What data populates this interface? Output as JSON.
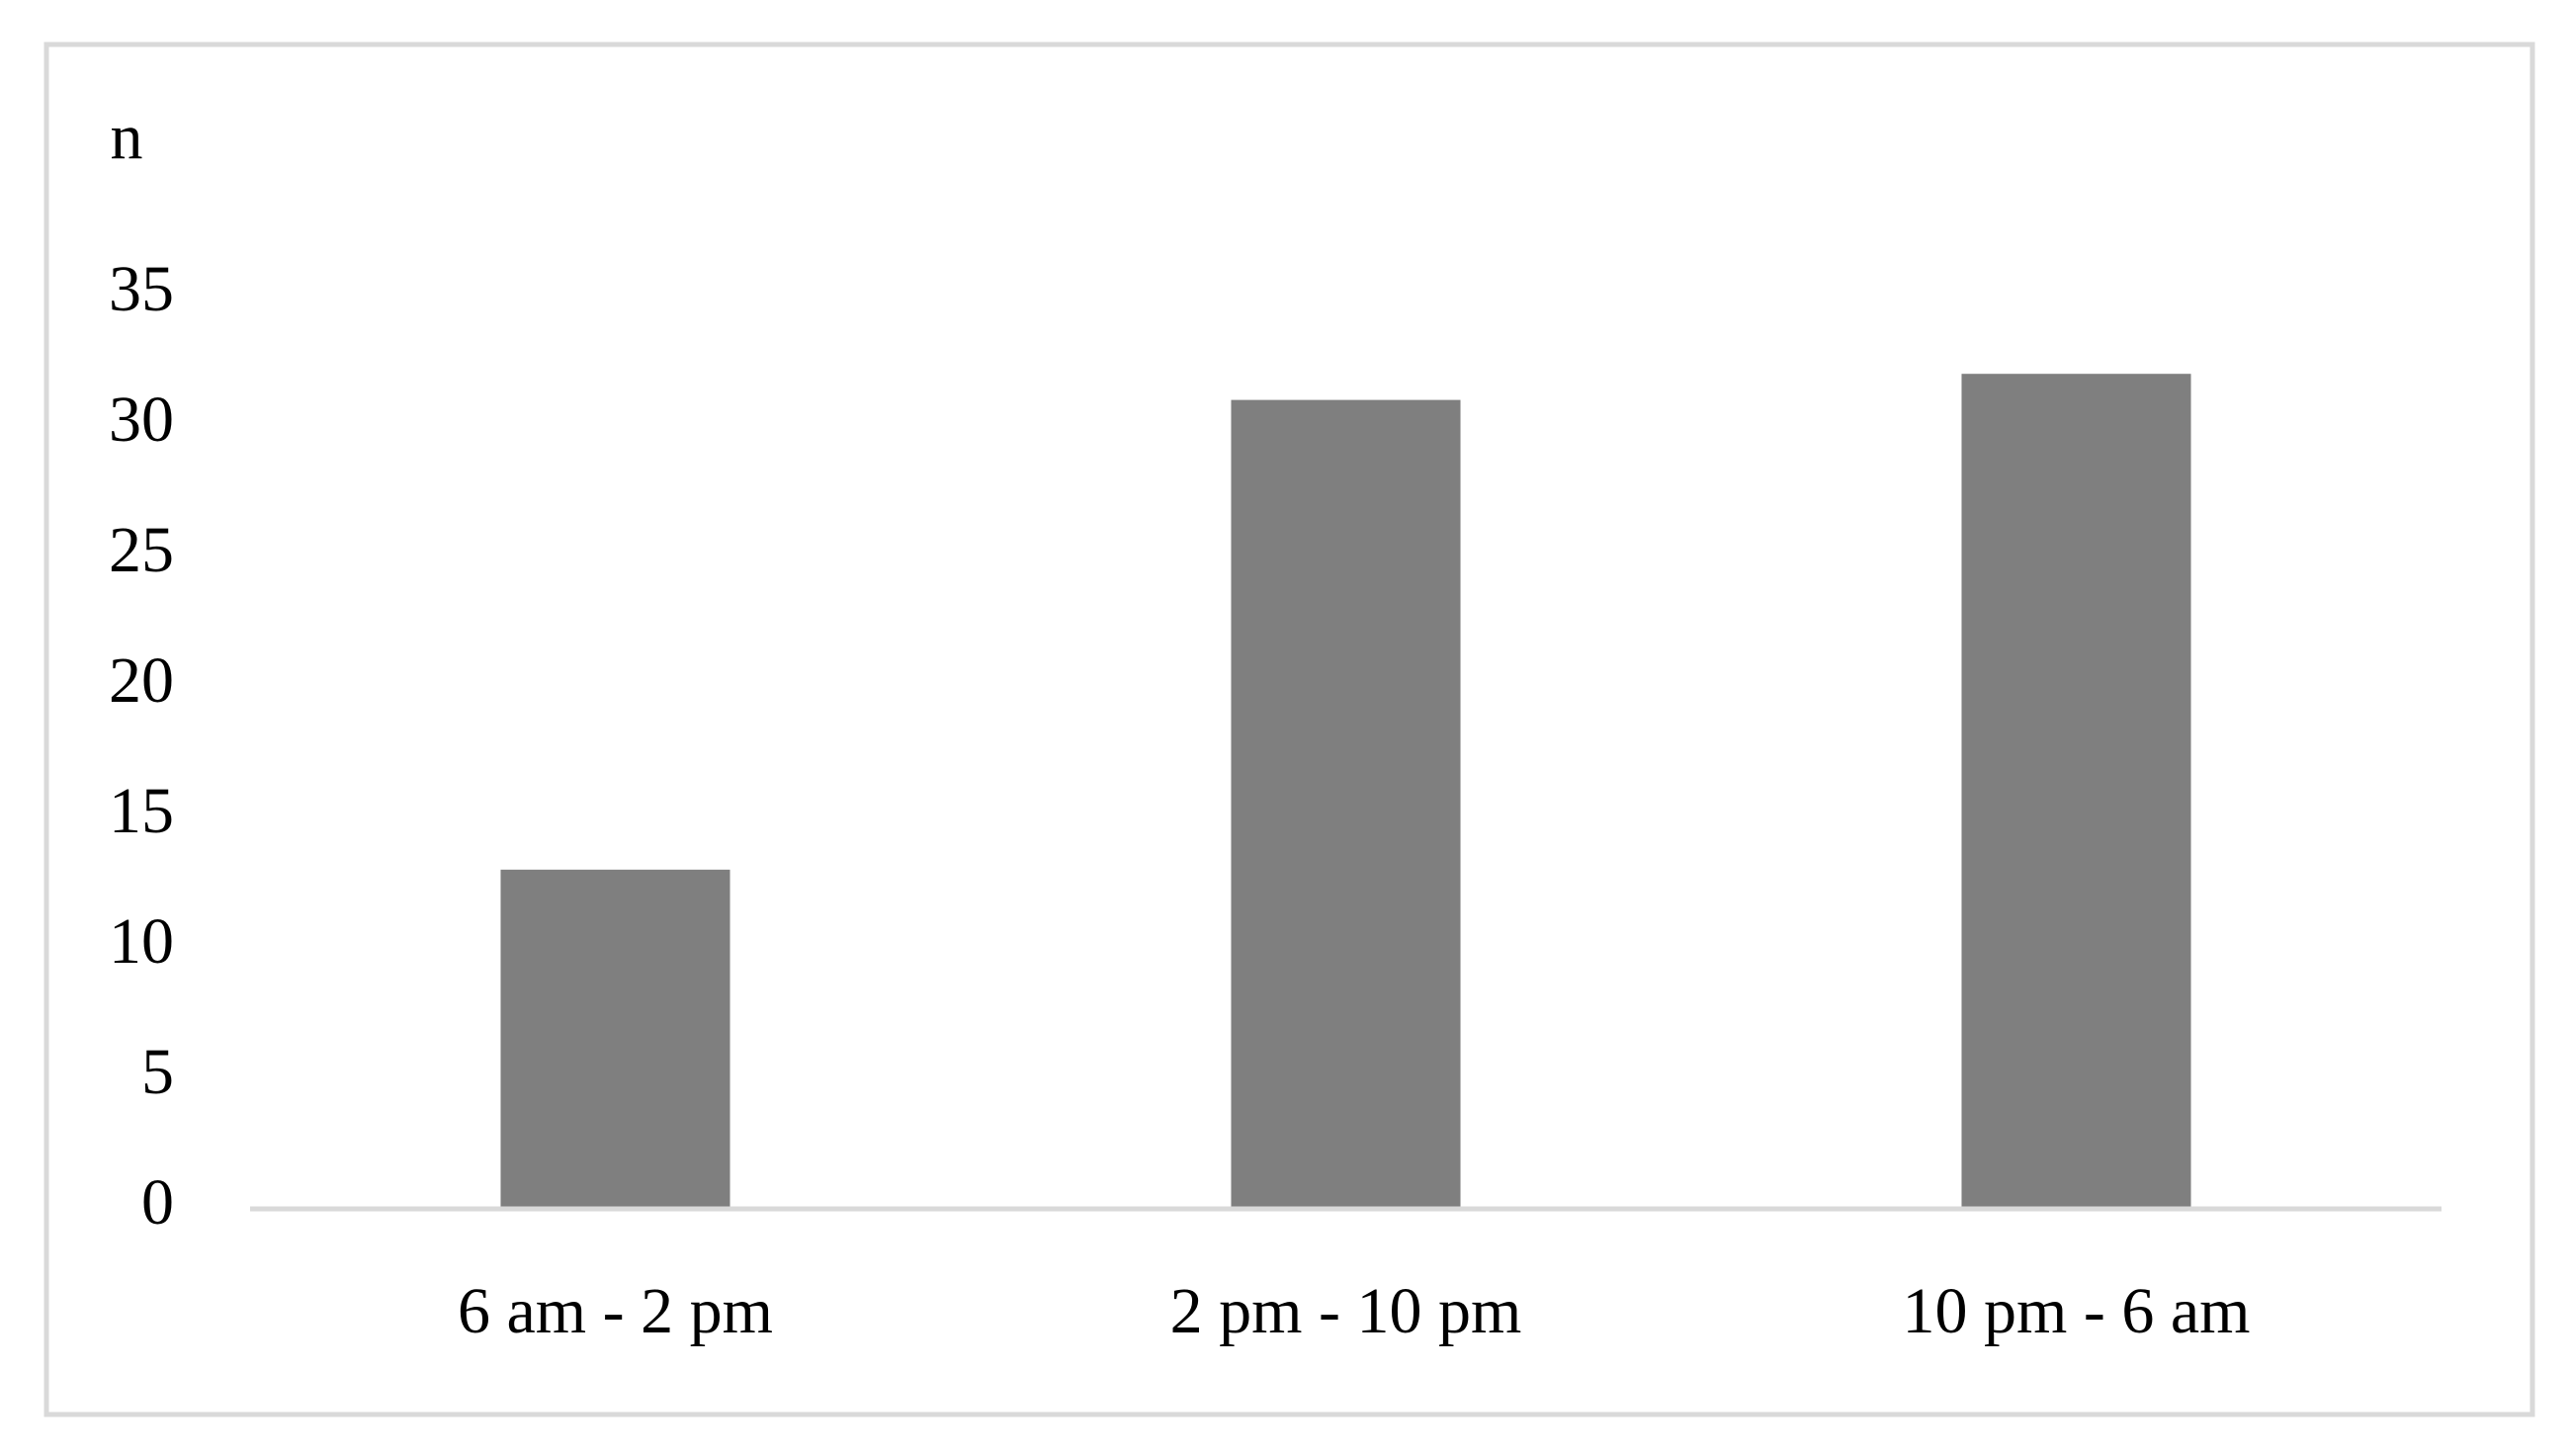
{
  "chart_data": {
    "type": "bar",
    "y_label": "n",
    "categories": [
      "6 am - 2 pm",
      "2 pm - 10 pm",
      "10 pm - 6 am"
    ],
    "values": [
      13,
      31,
      32
    ],
    "color": "#7f7f7f",
    "ylim": [
      0,
      35
    ],
    "yticks": [
      0,
      5,
      10,
      15,
      20,
      25,
      30,
      35
    ],
    "grid": false
  }
}
